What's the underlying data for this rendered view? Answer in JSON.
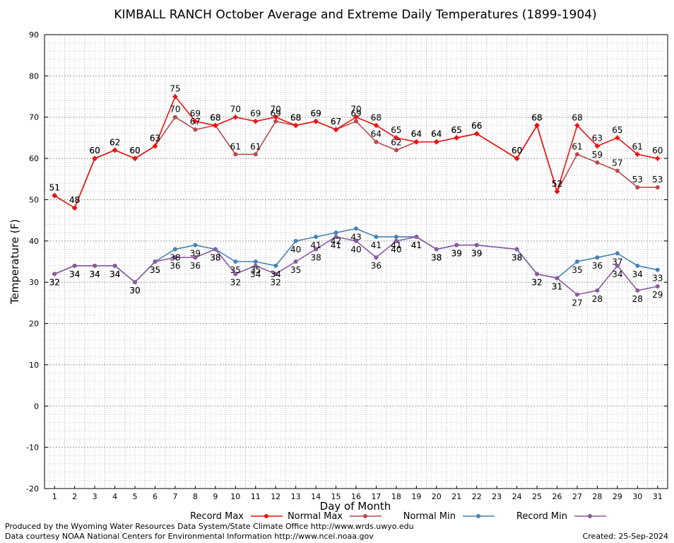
{
  "chart_data": {
    "type": "line",
    "title": "KIMBALL RANCH October Average and Extreme Daily Temperatures (1899-1904)",
    "xlabel": "Day of Month",
    "ylabel": "Temperature (F)",
    "xlim": [
      1,
      31
    ],
    "ylim": [
      -20,
      90
    ],
    "ytick_step": 10,
    "grid": true,
    "legend_position": "bottom",
    "x_ticks": [
      1,
      2,
      3,
      4,
      5,
      6,
      7,
      8,
      9,
      10,
      11,
      12,
      13,
      14,
      15,
      16,
      17,
      18,
      19,
      20,
      21,
      22,
      23,
      24,
      25,
      26,
      27,
      28,
      29,
      30,
      31
    ],
    "y_ticks": [
      -20,
      -10,
      0,
      10,
      20,
      30,
      40,
      50,
      60,
      70,
      80,
      90
    ],
    "series": [
      {
        "name": "Record Max",
        "color": "#ee1111",
        "x": [
          1,
          2,
          3,
          4,
          5,
          6,
          7,
          8,
          9,
          10,
          11,
          12,
          13,
          14,
          15,
          16,
          17,
          18,
          19,
          20,
          21,
          22,
          24,
          25,
          26,
          27,
          28,
          29,
          30,
          31
        ],
        "values": [
          51,
          48,
          60,
          62,
          60,
          63,
          75,
          69,
          68,
          70,
          69,
          70,
          68,
          69,
          67,
          70,
          68,
          65,
          64,
          64,
          65,
          66,
          60,
          68,
          52,
          68,
          63,
          65,
          61,
          60
        ]
      },
      {
        "name": "Normal Max",
        "color": "#b84a4a",
        "x": [
          1,
          2,
          3,
          4,
          5,
          6,
          7,
          8,
          9,
          10,
          11,
          12,
          13,
          14,
          15,
          16,
          17,
          18,
          19,
          20,
          21,
          22,
          24,
          25,
          26,
          27,
          28,
          29,
          30,
          31
        ],
        "values": [
          51,
          48,
          60,
          62,
          60,
          63,
          70,
          67,
          68,
          61,
          61,
          69,
          68,
          69,
          67,
          69,
          64,
          62,
          64,
          64,
          65,
          66,
          60,
          68,
          52,
          61,
          59,
          57,
          53,
          53
        ]
      },
      {
        "name": "Normal Min",
        "color": "#4682b4",
        "x": [
          1,
          2,
          3,
          4,
          5,
          6,
          7,
          8,
          9,
          10,
          11,
          12,
          13,
          14,
          15,
          16,
          17,
          18,
          19,
          20,
          21,
          22,
          24,
          25,
          26,
          27,
          28,
          29,
          30,
          31
        ],
        "values": [
          32,
          34,
          34,
          34,
          30,
          35,
          38,
          39,
          38,
          35,
          35,
          34,
          40,
          41,
          42,
          43,
          41,
          41,
          41,
          38,
          39,
          39,
          38,
          32,
          31,
          35,
          36,
          37,
          34,
          33
        ]
      },
      {
        "name": "Record Min",
        "color": "#8a5aa0",
        "x": [
          1,
          2,
          3,
          4,
          5,
          6,
          7,
          8,
          9,
          10,
          11,
          12,
          13,
          14,
          15,
          16,
          17,
          18,
          19,
          20,
          21,
          22,
          24,
          25,
          26,
          27,
          28,
          29,
          30,
          31
        ],
        "values": [
          32,
          34,
          34,
          34,
          30,
          35,
          36,
          36,
          38,
          32,
          34,
          32,
          35,
          38,
          41,
          40,
          36,
          40,
          41,
          38,
          39,
          39,
          38,
          32,
          31,
          27,
          28,
          34,
          28,
          29
        ]
      }
    ]
  },
  "footer": {
    "produced_by": "Produced by the Wyoming Water Resources Data System/State Climate Office http://www.wrds.uwyo.edu",
    "courtesy": "Data courtesy NOAA National Centers for Environmental Information http://www.ncei.noaa.gov",
    "created": "Created:  25-Sep-2024"
  }
}
